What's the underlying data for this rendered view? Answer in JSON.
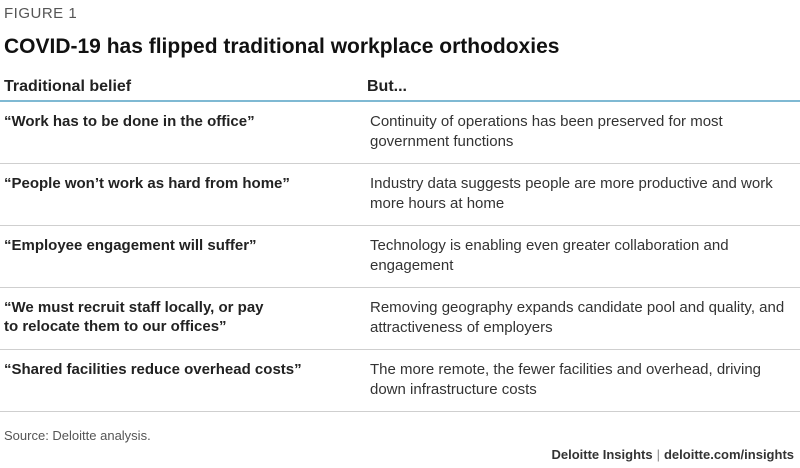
{
  "figure_label": "FIGURE 1",
  "title": "COVID-19 has flipped traditional workplace orthodoxies",
  "columns": {
    "left": "Traditional belief",
    "right": "But..."
  },
  "rows": [
    {
      "belief": "“Work has to be done in the office”",
      "but": "Continuity of operations has been preserved for most government functions"
    },
    {
      "belief": "“People won’t work as hard from home”",
      "but": "Industry data suggests people are more productive and work more hours at home"
    },
    {
      "belief": "“Employee engagement will suffer”",
      "but": "Technology is enabling even greater collaboration and engagement"
    },
    {
      "belief": "“We must recruit staff locally, or pay\n to relocate them to our offices”",
      "but": "Removing geography expands candidate pool and quality, and attractiveness of employers"
    },
    {
      "belief": "“Shared facilities reduce overhead costs”",
      "but": "The more remote, the fewer facilities and overhead, driving down infrastructure costs"
    }
  ],
  "source": "Source: Deloitte analysis.",
  "credit": {
    "brand": "Deloitte Insights",
    "separator": "|",
    "url": "deloitte.com/insights"
  }
}
